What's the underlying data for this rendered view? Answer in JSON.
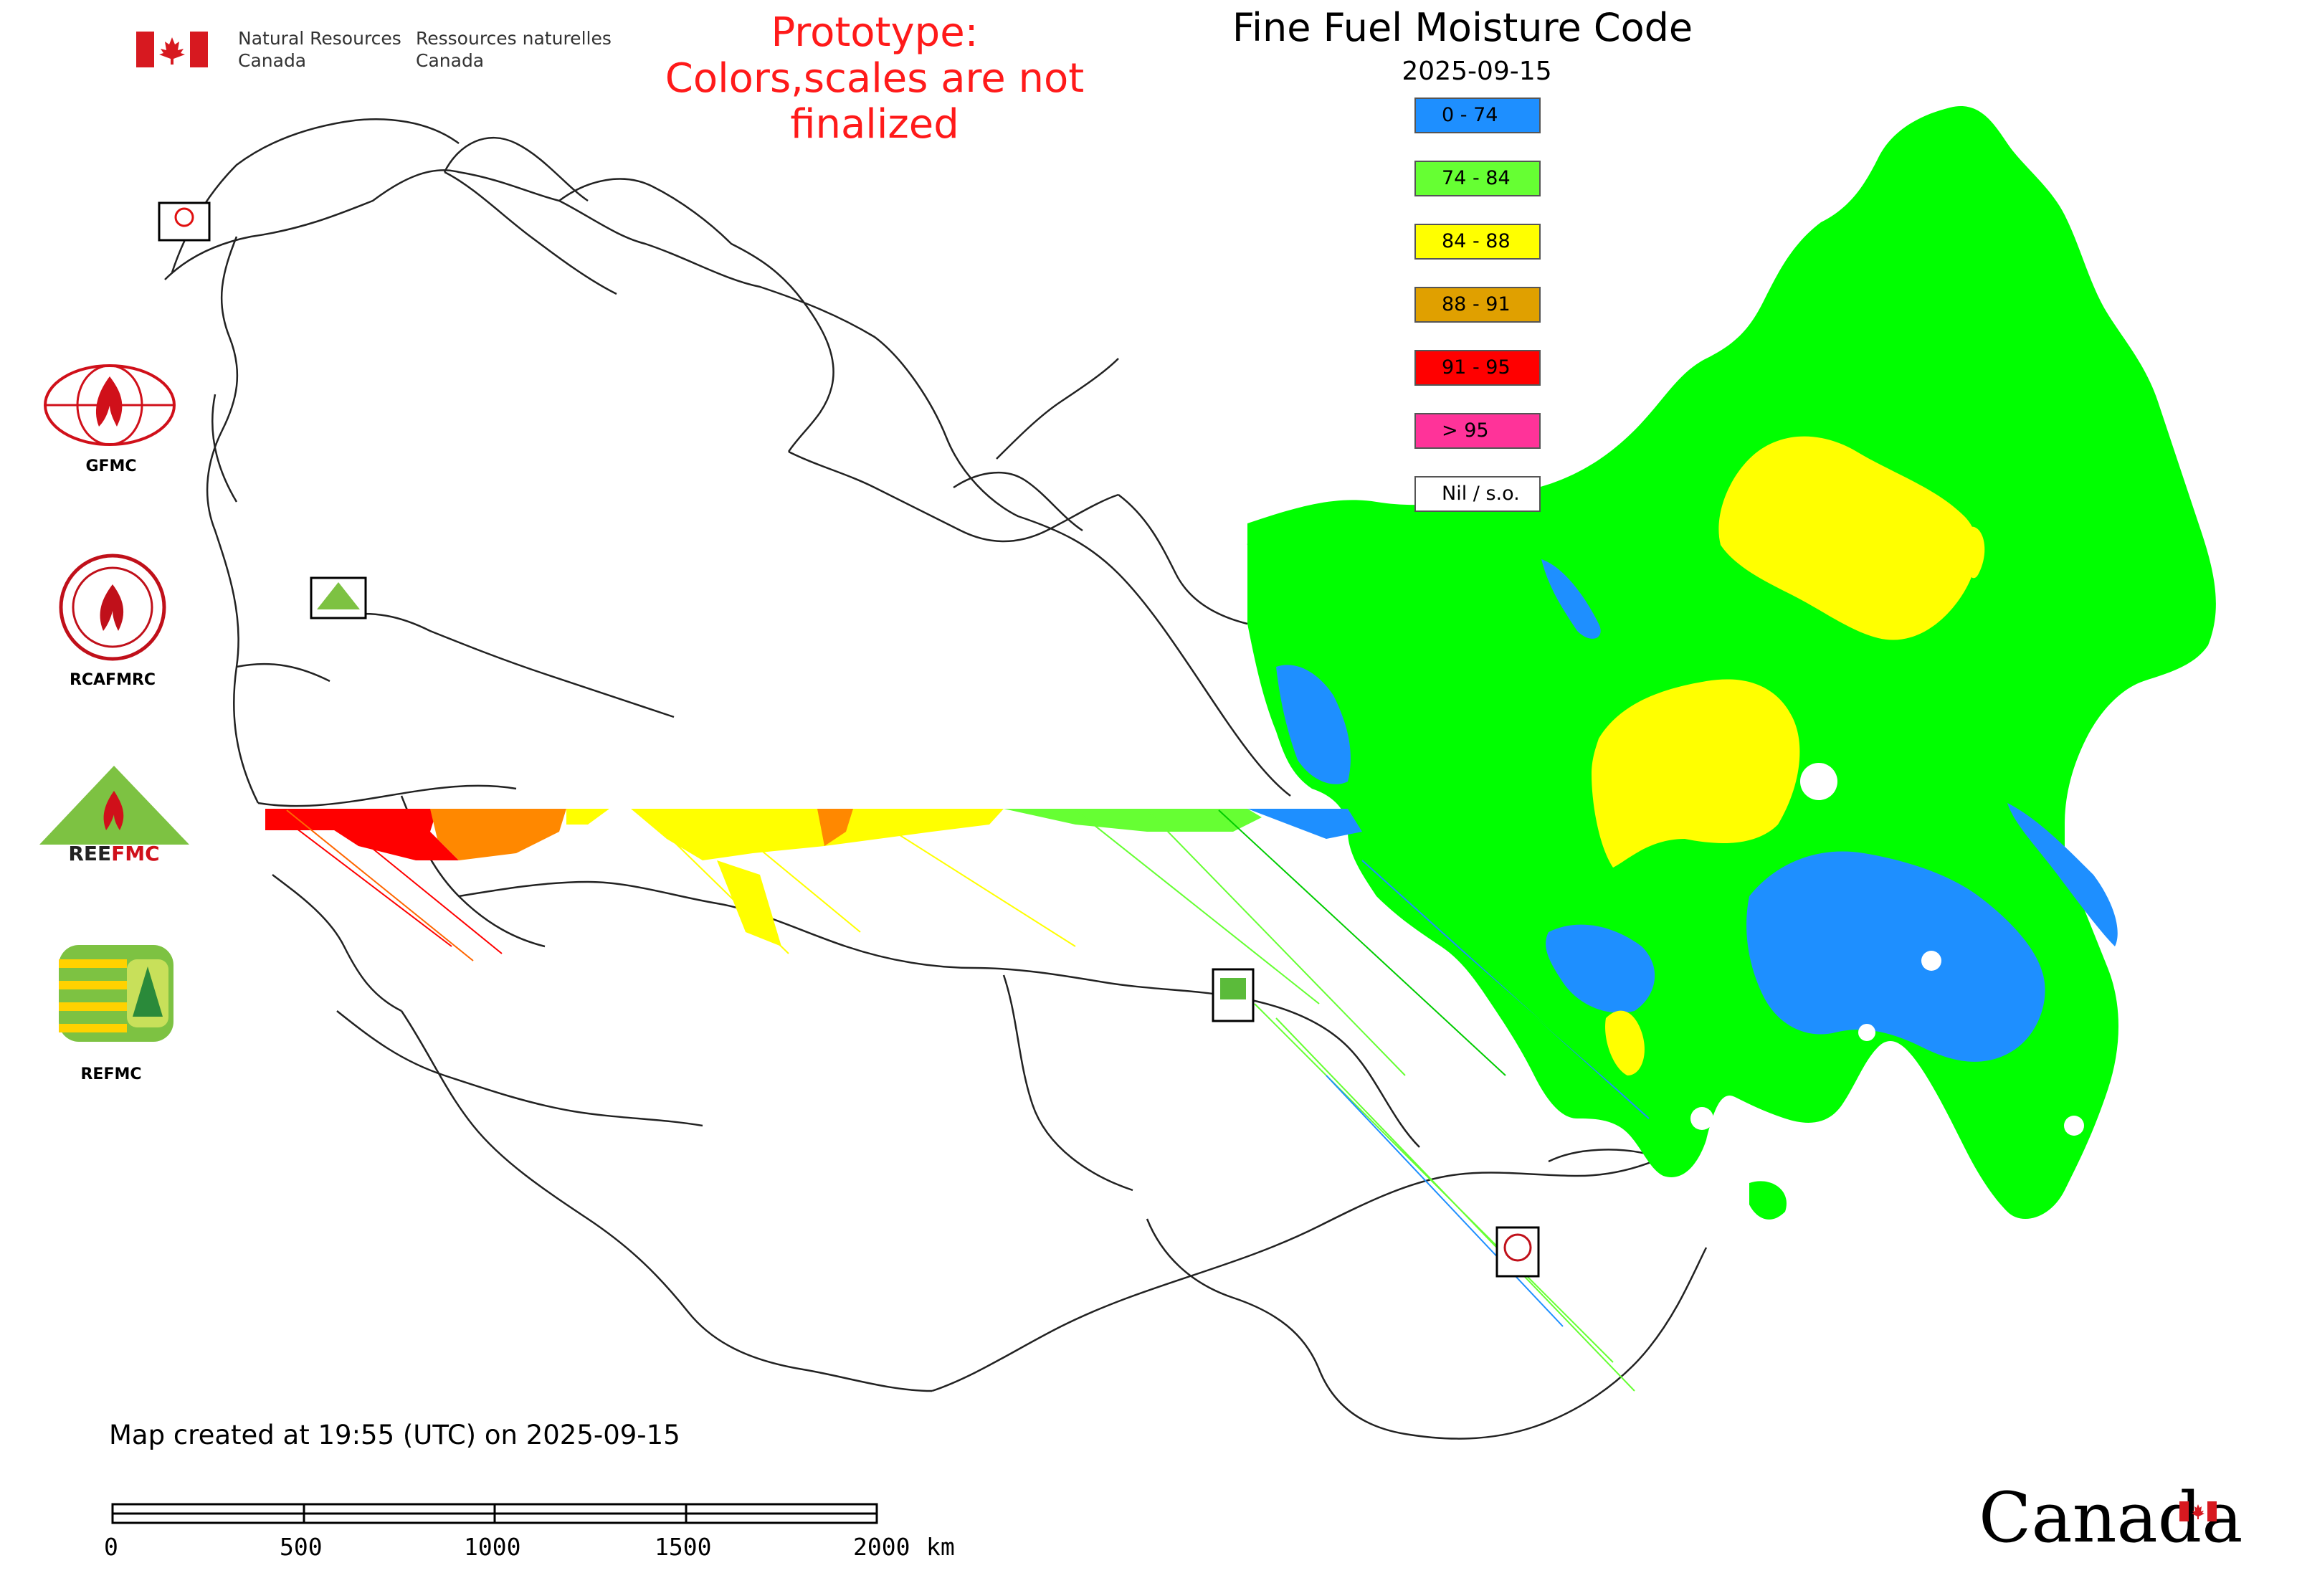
{
  "header": {
    "org_en_line1": "Natural Resources",
    "org_en_line2": "Canada",
    "org_fr_line1": "Ressources naturelles",
    "org_fr_line2": "Canada"
  },
  "warning": {
    "line1": "Prototype:",
    "line2": "Colors,scales are not finalized",
    "color": "#ff1a1a"
  },
  "title": "Fine Fuel Moisture Code",
  "date": "2025-09-15",
  "legend": [
    {
      "label": "0 - 74",
      "color": "#1e8fff"
    },
    {
      "label": "74 - 84",
      "color": "#66ff33"
    },
    {
      "label": "84 - 88",
      "color": "#ffff00"
    },
    {
      "label": "88 - 91",
      "color": "#e0a000"
    },
    {
      "label": "91 - 95",
      "color": "#ff0000"
    },
    {
      "label": "> 95",
      "color": "#ff3399"
    },
    {
      "label": "Nil / s.o.",
      "color": "#ffffff"
    }
  ],
  "logos": [
    {
      "label": "GFMC",
      "icon": "gfmc-globe-flame-logo"
    },
    {
      "label": "RCAFMRC",
      "icon": "rcafmrc-seal-logo"
    },
    {
      "label": "REEFMC",
      "icon": "reefmc-triangle-logo"
    },
    {
      "label": "REFMC",
      "icon": "refmc-sigma-logo"
    }
  ],
  "created_text": "Map created at 19:55 (UTC) on 2025-09-15",
  "scale_bar": {
    "ticks": [
      "0",
      "500",
      "1000",
      "1500",
      "2000"
    ],
    "unit": "km"
  },
  "wordmark": "Canada"
}
